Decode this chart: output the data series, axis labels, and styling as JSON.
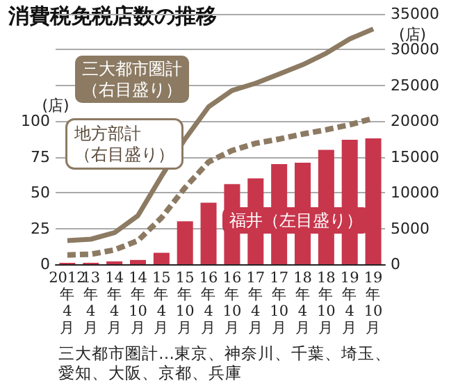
{
  "chart_data": {
    "type": "bar",
    "title": "消費税免税店数の推移",
    "ylabel": "(店)",
    "y2label": "(店)",
    "categories": [
      "2012年4月",
      "13年4月",
      "14年4月",
      "14年10月",
      "15年4月",
      "15年10月",
      "16年4月",
      "16年10月",
      "17年4月",
      "17年10月",
      "18年4月",
      "18年10月",
      "19年4月",
      "19年10月"
    ],
    "series": [
      {
        "name": "福井（左目盛り）",
        "color": "#c8364c",
        "values": [
          1,
          1,
          2,
          3,
          8,
          30,
          43,
          56,
          60,
          70,
          71,
          80,
          87,
          88
        ]
      },
      {
        "name": "三大都市圏計（右目盛り）",
        "type": "line",
        "axis": "y2",
        "color": "#8c7a62",
        "line_style": "solid",
        "values": [
          3300,
          3500,
          4400,
          6800,
          12300,
          17500,
          22000,
          24300,
          25300,
          26600,
          27900,
          29500,
          31500,
          32900
        ]
      },
      {
        "name": "地方部計（右目盛り）",
        "type": "line",
        "axis": "y2",
        "color": "#8c7a62",
        "line_style": "dashed",
        "values": [
          1300,
          1400,
          2000,
          3300,
          6500,
          10700,
          14300,
          15900,
          16900,
          17500,
          18200,
          18800,
          19500,
          20400
        ]
      }
    ],
    "ylim": [
      0,
      175
    ],
    "yticks": [
      0,
      25,
      50,
      75,
      100
    ],
    "y2lim": [
      0,
      35000
    ],
    "y2ticks": [
      0,
      5000,
      10000,
      15000,
      20000,
      25000,
      30000,
      35000
    ],
    "grid": "y2",
    "legend": false,
    "marker": "none",
    "annotations": [
      "三大都市圏計…東京、神奈川、千葉、埼玉、愛知、大阪、京都、兵庫"
    ]
  }
}
